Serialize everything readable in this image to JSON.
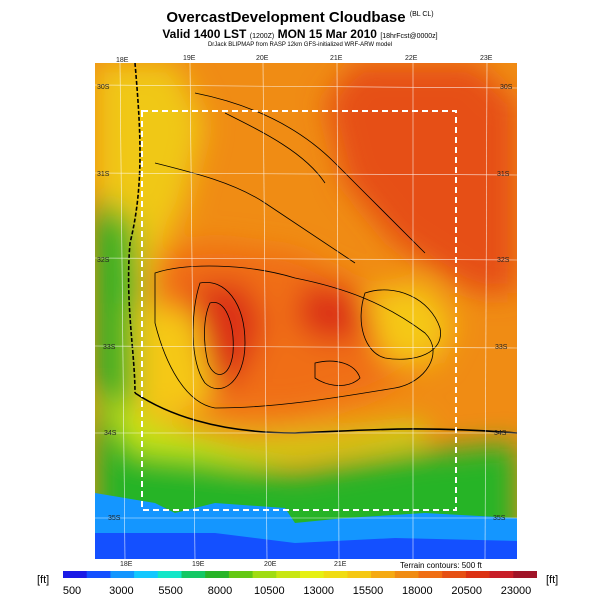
{
  "header": {
    "title": "OvercastDevelopment Cloudbase",
    "title_suffix": "(BL CL)",
    "subtitle": "Valid 1400 LST",
    "subtitle_time_code": "(1200Z)",
    "subtitle_date": "MON 15 Mar 2010",
    "subtitle_forecast": "[18hrFcst@0000z]",
    "credit": "DrJack BLIPMAP from RASP 12km GFS-initialized WRF-ARW model"
  },
  "map": {
    "lon_labels_top": [
      "18E",
      "19E",
      "20E",
      "21E",
      "22E",
      "23E"
    ],
    "lon_labels_bottom": [
      "18E",
      "19E",
      "20E",
      "21E"
    ],
    "lat_labels_left": [
      "30S",
      "31S",
      "32S",
      "33S",
      "34S",
      "35S"
    ],
    "lat_labels_right": [
      "30S",
      "31S",
      "32S",
      "33S",
      "34S",
      "35S"
    ]
  },
  "legend": {
    "unit_left": "[ft]",
    "unit_right": "[ft]",
    "terrain_note": "Terrain contours: 500 ft",
    "tick_labels": [
      "500",
      "3000",
      "5500",
      "8000",
      "10500",
      "13000",
      "15500",
      "18000",
      "20500",
      "23000"
    ],
    "colors": [
      "#1a1ae6",
      "#1450ff",
      "#1496ff",
      "#14c8ff",
      "#14e6c8",
      "#14c864",
      "#28b428",
      "#64c814",
      "#a0dc14",
      "#c8e614",
      "#e6f014",
      "#f0dc14",
      "#f5c814",
      "#f5aa14",
      "#f08c14",
      "#f06e14",
      "#e65014",
      "#dc3214",
      "#c81e28",
      "#a01428"
    ]
  }
}
